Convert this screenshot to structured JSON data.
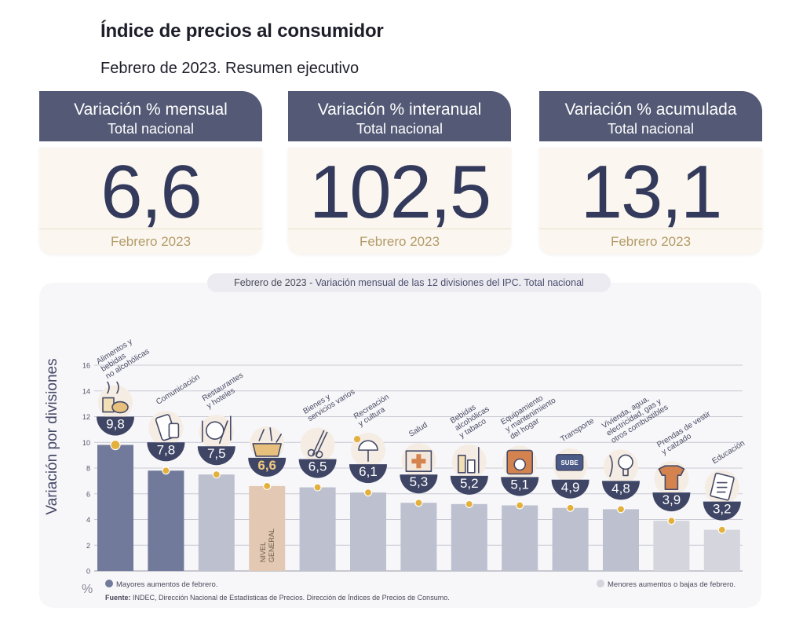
{
  "header": {
    "title": "Índice de precios al consumidor",
    "subtitle": "Febrero de 2023. Resumen ejecutivo"
  },
  "cards": [
    {
      "label": "Variación % mensual",
      "scope": "Total nacional",
      "value": "6,6",
      "period": "Febrero 2023"
    },
    {
      "label": "Variación % interanual",
      "scope": "Total nacional",
      "value": "102,5",
      "period": "Febrero 2023"
    },
    {
      "label": "Variación % acumulada",
      "scope": "Total nacional",
      "value": "13,1",
      "period": "Febrero 2023"
    }
  ],
  "colors": {
    "header_bg": "#545a76",
    "value_text": "#343a5b",
    "period_text": "#b39b68",
    "bar_high": "#717a9a",
    "bar_mid": "#bcc0cf",
    "bar_low": "#d5d6dd",
    "bar_general": "#e3c9b3",
    "dot": "#e3b03b"
  },
  "chart_data": {
    "type": "bar",
    "title_prefix": "Febrero de 2023",
    "title_sep": " - ",
    "title": "Variación mensual de las 12 divisiones del IPC. Total nacional",
    "ylabel": "Variación por divisiones",
    "yunit": "%",
    "ylim": [
      0,
      16
    ],
    "yticks": [
      0,
      2,
      4,
      6,
      8,
      10,
      12,
      14,
      16
    ],
    "grid": true,
    "categories": [
      "Alimentos y bebidas no alcohólicas",
      "Comunicación",
      "Restaurantes y hoteles",
      "Nivel general",
      "Bienes y servicios varios",
      "Recreación y cultura",
      "Salud",
      "Bebidas alcohólicas y tabaco",
      "Equipamiento y mantenimiento del hogar",
      "Transporte",
      "Vivienda, agua, electricidad, gas y otros combustibles",
      "Prendas de vestir y calzado",
      "Educación"
    ],
    "category_lines": [
      [
        "Alimentos y",
        "bebidas",
        "no alcohólicas"
      ],
      [
        "Comunicación"
      ],
      [
        "Restaurantes",
        "y hoteles"
      ],
      [],
      [
        "Bienes y",
        "servicios varios"
      ],
      [
        "Recreación",
        "y cultura"
      ],
      [
        "Salud"
      ],
      [
        "Bebidas",
        "alcohólicas",
        "y tabaco"
      ],
      [
        "Equipamiento",
        "y mantenimiento",
        "del hogar"
      ],
      [
        "Transporte"
      ],
      [
        "Vivienda, agua,",
        "electricidad, gas y",
        "otros combustibles"
      ],
      [
        "Prendas de vestir",
        "y calzado"
      ],
      [
        "Educación"
      ]
    ],
    "values": [
      9.8,
      7.8,
      7.5,
      6.6,
      6.5,
      6.1,
      5.3,
      5.2,
      5.1,
      4.9,
      4.8,
      3.9,
      3.2
    ],
    "value_labels": [
      "9,8",
      "7,8",
      "7,5",
      "6,6",
      "6,5",
      "6,1",
      "5,3",
      "5,2",
      "5,1",
      "4,9",
      "4,8",
      "3,9",
      "3,2"
    ],
    "groups": [
      "high",
      "high",
      "mid",
      "general",
      "mid",
      "mid",
      "mid",
      "mid",
      "mid",
      "mid",
      "mid",
      "low",
      "low"
    ],
    "icons": [
      "food-icon",
      "phone-icon",
      "cutlery-icon",
      "basket-icon",
      "comb-icon",
      "umbrella-icon",
      "first-aid-icon",
      "bottles-icon",
      "appliance-icon",
      "bus-card-icon",
      "bulb-icon",
      "tshirt-icon",
      "book-icon"
    ],
    "general_label": [
      "NIVEL",
      "GENERAL"
    ],
    "legend": {
      "high": "Mayores aumentos de febrero.",
      "low": "Menores aumentos o bajas de febrero."
    }
  },
  "footer": {
    "source_label": "Fuente:",
    "source_text": "INDEC, Dirección Nacional de Estadísticas de Precios. Dirección de Índices de Precios de Consumo."
  }
}
